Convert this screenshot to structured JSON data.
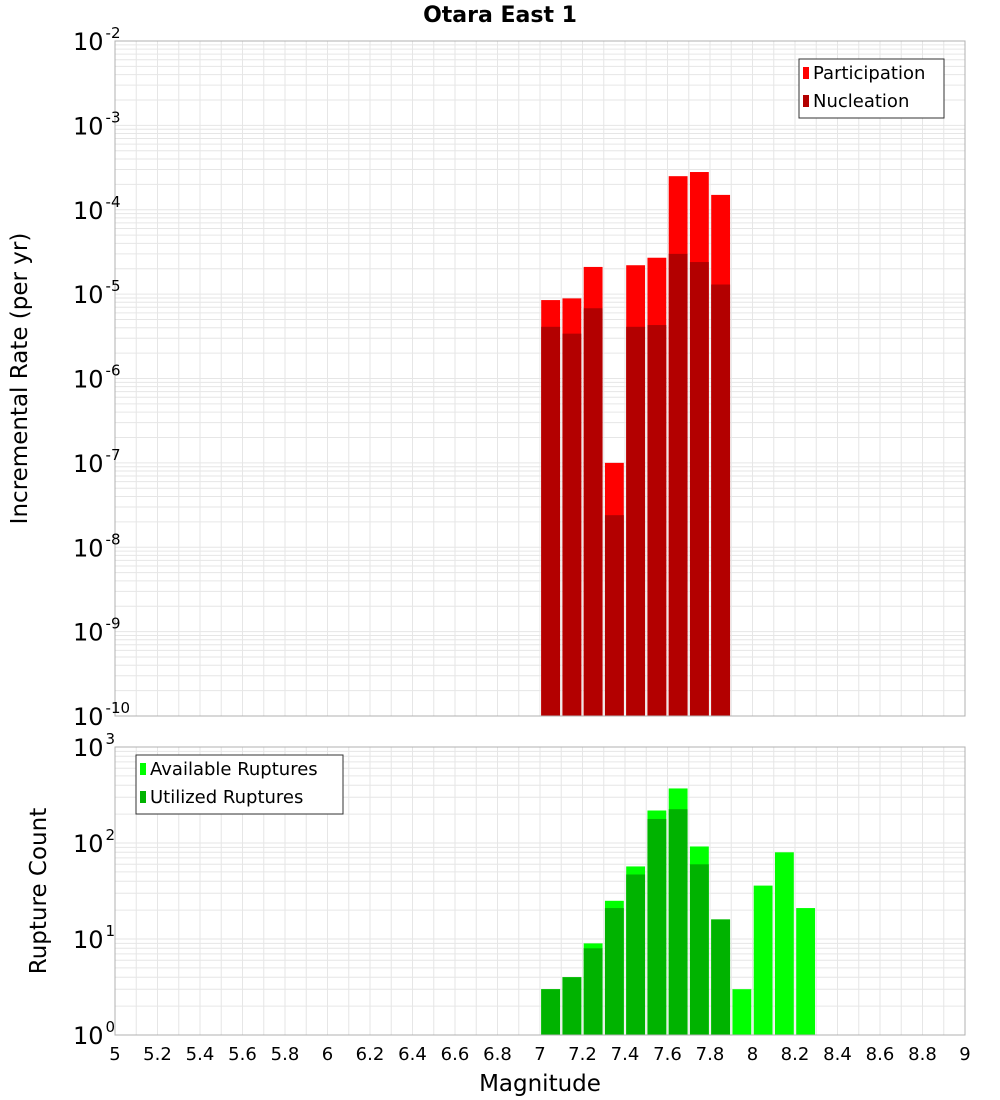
{
  "title": "Otara East 1",
  "colors": {
    "participation": "#ff0000",
    "nucleation": "#b30000",
    "available": "#00ff00",
    "utilized": "#00b300",
    "grid": "#e6e6e6",
    "frame": "#b0b0b0"
  },
  "chart_data": [
    {
      "type": "bar",
      "title": "Otara East 1",
      "xlabel": "",
      "ylabel": "Incremental Rate (per yr)",
      "yscale": "log",
      "ylim_exponents": [
        -10,
        -2
      ],
      "xlim": [
        5,
        9
      ],
      "ytick_exponents": [
        -10,
        -9,
        -8,
        -7,
        -6,
        -5,
        -4,
        -3,
        -2
      ],
      "grid": true,
      "legend_position": "top-right",
      "bar_width": 0.1,
      "series": [
        {
          "name": "Participation",
          "color_key": "participation",
          "x": [
            7.05,
            7.15,
            7.25,
            7.35,
            7.45,
            7.55,
            7.65,
            7.75,
            7.85
          ],
          "values": [
            8.5e-06,
            8.9e-06,
            2.1e-05,
            1e-07,
            2.2e-05,
            2.7e-05,
            0.00025,
            0.00028,
            0.00015
          ]
        },
        {
          "name": "Nucleation",
          "color_key": "nucleation",
          "x": [
            7.05,
            7.15,
            7.25,
            7.35,
            7.45,
            7.55,
            7.65,
            7.75,
            7.85
          ],
          "values": [
            4.1e-06,
            3.4e-06,
            6.8e-06,
            2.4e-08,
            4.1e-06,
            4.3e-06,
            3e-05,
            2.4e-05,
            1.3e-05
          ]
        }
      ]
    },
    {
      "type": "bar",
      "title": "",
      "xlabel": "Magnitude",
      "ylabel": "Rupture Count",
      "yscale": "log",
      "ylim_exponents": [
        0,
        3
      ],
      "xlim": [
        5,
        9
      ],
      "ytick_exponents": [
        0,
        1,
        2,
        3
      ],
      "xticks": [
        "5",
        "5.2",
        "5.4",
        "5.6",
        "5.8",
        "6",
        "6.2",
        "6.4",
        "6.6",
        "6.8",
        "7",
        "7.2",
        "7.4",
        "7.6",
        "7.8",
        "8",
        "8.2",
        "8.4",
        "8.6",
        "8.8",
        "9"
      ],
      "grid": true,
      "legend_position": "top-left",
      "bar_width": 0.1,
      "series": [
        {
          "name": "Available Ruptures",
          "color_key": "available",
          "x": [
            6.75,
            7.05,
            7.15,
            7.25,
            7.35,
            7.45,
            7.55,
            7.65,
            7.75,
            7.85,
            7.95,
            8.05,
            8.15,
            8.25
          ],
          "values": [
            1,
            3,
            4,
            9,
            25,
            57,
            218,
            370,
            92,
            16,
            3,
            36,
            80,
            21
          ]
        },
        {
          "name": "Utilized Ruptures",
          "color_key": "utilized",
          "x": [
            7.05,
            7.15,
            7.25,
            7.35,
            7.45,
            7.55,
            7.65,
            7.75,
            7.85,
            8.05,
            8.15,
            8.25
          ],
          "values": [
            3,
            4,
            8,
            21,
            47,
            178,
            225,
            60,
            16,
            1,
            1,
            1
          ]
        }
      ]
    }
  ]
}
